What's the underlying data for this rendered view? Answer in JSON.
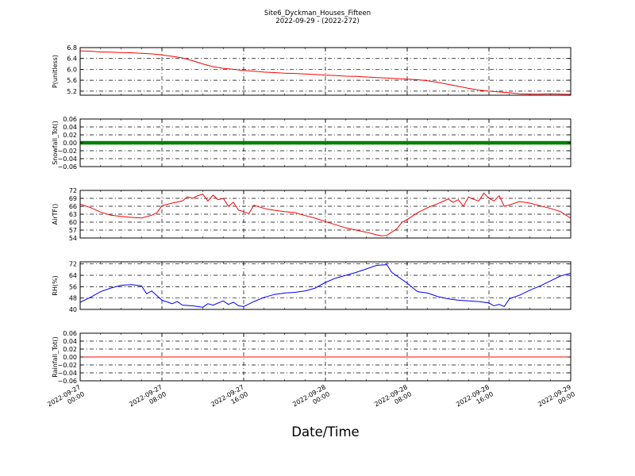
{
  "figure": {
    "title": "Site6_Dyckman_Houses_Fifteen",
    "subtitle": "2022-09-29 - (2022-272)",
    "xlabel": "Date/Time",
    "x_tick_labels": [
      [
        "2022-09-27",
        "00:00"
      ],
      [
        "2022-09-27",
        "08:00"
      ],
      [
        "2022-09-27",
        "16:00"
      ],
      [
        "2022-09-28",
        "00:00"
      ],
      [
        "2022-09-28",
        "08:00"
      ],
      [
        "2022-09-28",
        "16:00"
      ],
      [
        "2022-09-29",
        "00:00"
      ]
    ]
  },
  "chart_data": [
    {
      "type": "line",
      "ylabel": "P(unitless)",
      "color": "#ff0000",
      "ylim": [
        5.05,
        6.8
      ],
      "yticks": [
        "6.8",
        "6.4",
        "6.0",
        "5.6",
        "5.2"
      ],
      "xlim": [
        0,
        48
      ],
      "x_unit": "hours since 2022-09-27 00:00",
      "x": [
        0,
        1,
        2,
        3,
        4,
        5,
        6,
        7,
        8,
        9,
        10,
        11,
        12,
        13,
        14,
        15,
        16,
        17,
        18,
        19,
        20,
        21,
        22,
        23,
        24,
        25,
        26,
        27,
        28,
        29,
        30,
        31,
        32,
        33,
        34,
        35,
        36,
        37,
        38,
        39,
        40,
        41,
        42,
        43,
        44,
        45,
        46,
        47,
        48
      ],
      "y": [
        6.68,
        6.67,
        6.64,
        6.63,
        6.62,
        6.61,
        6.59,
        6.57,
        6.53,
        6.48,
        6.42,
        6.32,
        6.2,
        6.1,
        6.04,
        6.0,
        5.96,
        5.93,
        5.9,
        5.88,
        5.86,
        5.85,
        5.83,
        5.81,
        5.79,
        5.77,
        5.75,
        5.74,
        5.72,
        5.7,
        5.68,
        5.66,
        5.64,
        5.62,
        5.58,
        5.52,
        5.45,
        5.38,
        5.3,
        5.24,
        5.2,
        5.17,
        5.14,
        5.1,
        5.09,
        5.09,
        5.1,
        5.09,
        5.08
      ]
    },
    {
      "type": "line",
      "ylabel": "Snowfall_Tot()",
      "color": "#008000",
      "marker": "dot",
      "ylim": [
        -0.06,
        0.06
      ],
      "yticks": [
        "0.06",
        "0.04",
        "0.02",
        "0.00",
        "−0.02",
        "−0.04",
        "−0.06"
      ],
      "xlim": [
        0,
        48
      ],
      "x": [
        0,
        48
      ],
      "y": [
        0,
        0
      ]
    },
    {
      "type": "line",
      "ylabel": "AirTF()",
      "color": "#ff0000",
      "ylim": [
        54,
        72
      ],
      "yticks": [
        "72",
        "69",
        "66",
        "63",
        "60",
        "57",
        "54"
      ],
      "xlim": [
        0,
        48
      ],
      "x": [
        0,
        1,
        2,
        3,
        4,
        5,
        6,
        7,
        7.5,
        8,
        9,
        10,
        10.5,
        11,
        11.5,
        12,
        12.5,
        13,
        13.5,
        14,
        14.5,
        15,
        15.5,
        16,
        16.5,
        17,
        17.5,
        18,
        18.5,
        19,
        20,
        21,
        22,
        23,
        24,
        25,
        26,
        27,
        28,
        29,
        29.5,
        30,
        31,
        31.5,
        32,
        33,
        34,
        35,
        35.5,
        36,
        36.5,
        37,
        37.5,
        38,
        38.5,
        39,
        39.5,
        40,
        40.5,
        41,
        41.5,
        42,
        43,
        44,
        45,
        46,
        47,
        48
      ],
      "y": [
        66.8,
        65.5,
        63.8,
        62.6,
        62.2,
        61.8,
        61.6,
        62.6,
        63.5,
        66.2,
        67.2,
        68.0,
        69.6,
        69.0,
        70.0,
        70.6,
        68.0,
        70.2,
        68.5,
        69.0,
        66.0,
        67.5,
        64.5,
        64.0,
        63.2,
        66.4,
        65.8,
        65.2,
        64.8,
        64.5,
        64.0,
        63.6,
        62.5,
        61.5,
        60.2,
        59.0,
        57.8,
        57.0,
        56.2,
        55.2,
        54.8,
        55.0,
        57.5,
        60.0,
        61.0,
        63.5,
        65.5,
        67.0,
        67.8,
        68.8,
        67.5,
        68.5,
        66.0,
        69.5,
        68.6,
        68.0,
        71.0,
        69.0,
        68.0,
        70.0,
        66.0,
        66.5,
        67.8,
        67.2,
        66.2,
        65.2,
        64.0,
        61.5
      ]
    },
    {
      "type": "line",
      "ylabel": "RH(%)",
      "color": "#0000ff",
      "ylim": [
        40,
        73.5
      ],
      "yticks": [
        "72",
        "64",
        "56",
        "48",
        "40"
      ],
      "xlim": [
        0,
        48
      ],
      "x": [
        0,
        1,
        2,
        3,
        4,
        5,
        6,
        6.5,
        7,
        8,
        9,
        9.5,
        10,
        11,
        12,
        12.5,
        13,
        14,
        14.5,
        15,
        15.5,
        16,
        17,
        18,
        19,
        20,
        21,
        22,
        23,
        24,
        25,
        26,
        27,
        28,
        29,
        30,
        30.5,
        31,
        32,
        33,
        34,
        35,
        36,
        37,
        38,
        39,
        40,
        40.5,
        41,
        41.5,
        42,
        43,
        44,
        45,
        46,
        47,
        48
      ],
      "y": [
        45.0,
        48.5,
        52.5,
        55.0,
        57.0,
        57.5,
        56.5,
        51.0,
        53.0,
        46.5,
        44.0,
        45.5,
        43.0,
        42.5,
        41.5,
        44.0,
        43.0,
        46.0,
        43.5,
        45.0,
        42.5,
        42.0,
        45.5,
        48.5,
        50.5,
        51.5,
        52.0,
        53.0,
        55.0,
        59.0,
        62.0,
        64.0,
        66.0,
        68.5,
        71.0,
        71.5,
        66.0,
        63.5,
        58.5,
        52.5,
        51.5,
        49.0,
        47.5,
        46.5,
        46.0,
        45.5,
        44.5,
        42.5,
        43.5,
        42.0,
        47.5,
        50.0,
        53.5,
        56.5,
        60.0,
        63.5,
        65.5
      ]
    },
    {
      "type": "line",
      "ylabel": "Rainfall_Tot()",
      "color": "#ff0000",
      "ylim": [
        -0.06,
        0.06
      ],
      "yticks": [
        "0.06",
        "0.04",
        "0.02",
        "0.00",
        "−0.02",
        "−0.04",
        "−0.06"
      ],
      "xlim": [
        0,
        48
      ],
      "x": [
        0,
        48
      ],
      "y": [
        0,
        0
      ]
    }
  ]
}
